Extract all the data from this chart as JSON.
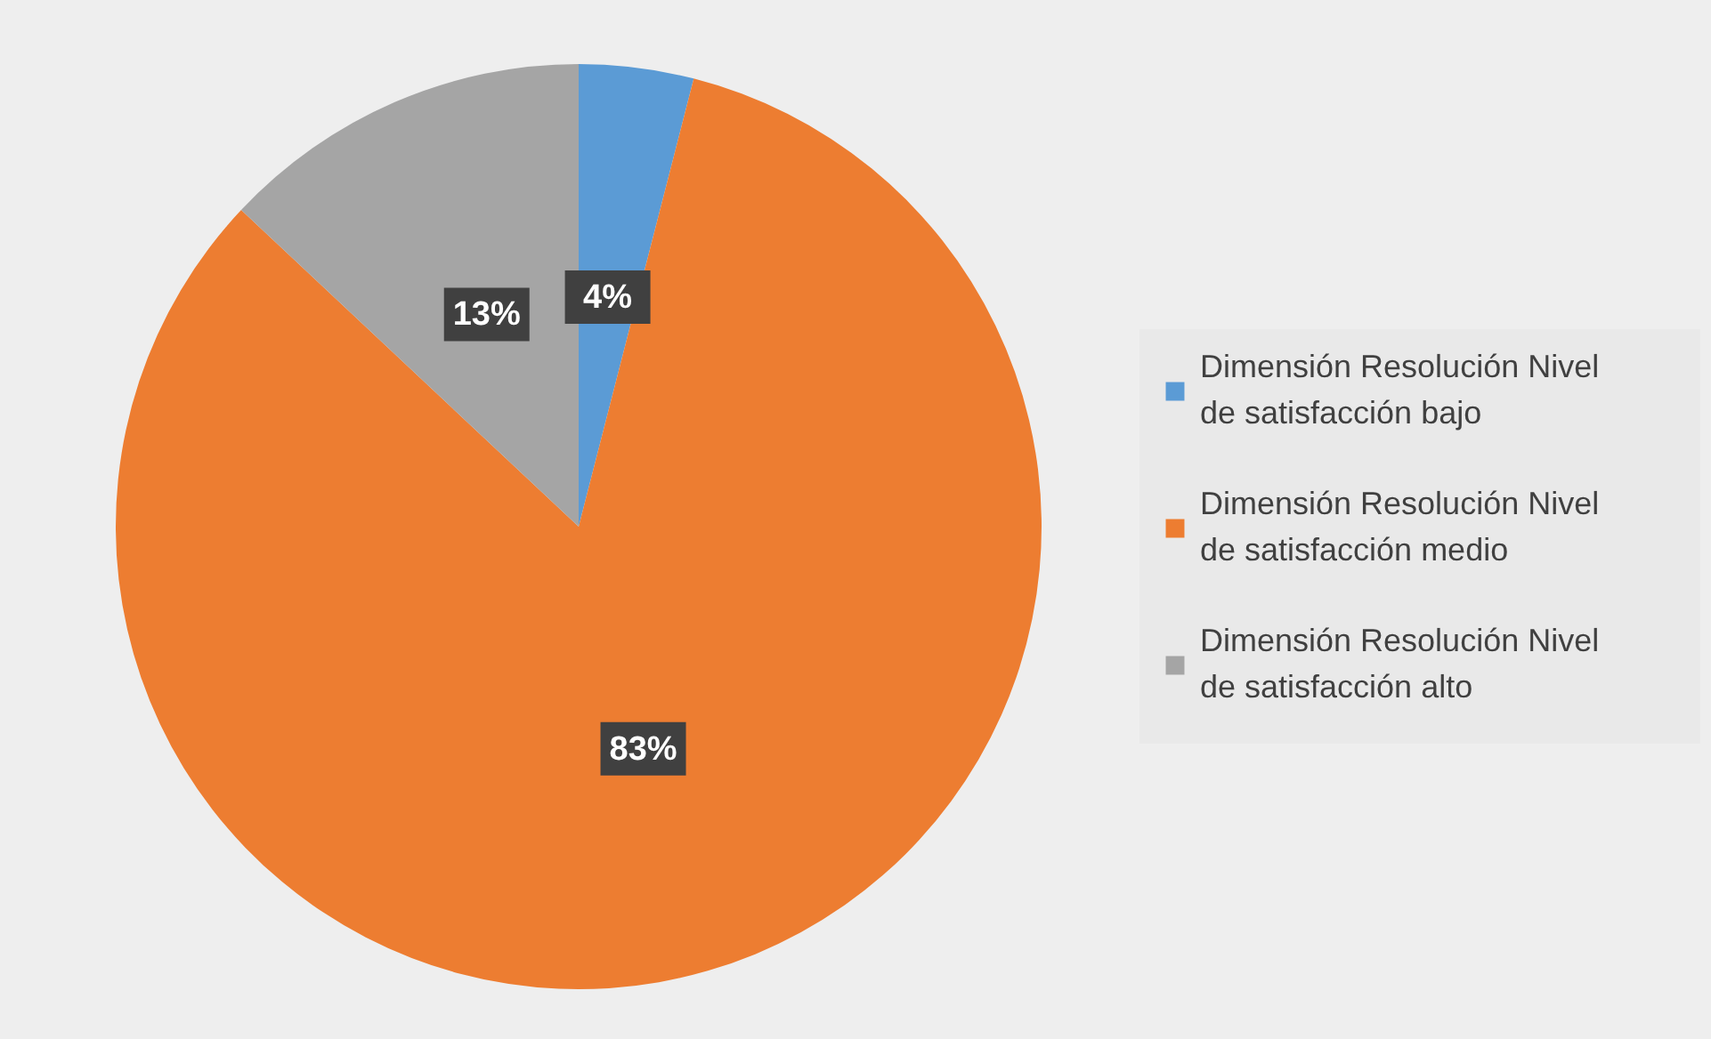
{
  "chart_data": {
    "type": "pie",
    "categories": [
      "Dimensión Resolución Nivel de satisfacción bajo",
      "Dimensión Resolución Nivel de satisfacción medio",
      "Dimensión Resolución Nivel de satisfacción alto"
    ],
    "values": [
      4,
      83,
      13
    ],
    "colors": [
      "#5b9bd5",
      "#ed7d31",
      "#a5a5a5"
    ],
    "value_labels": [
      "4%",
      "83%",
      "13%"
    ],
    "legend": "right"
  }
}
